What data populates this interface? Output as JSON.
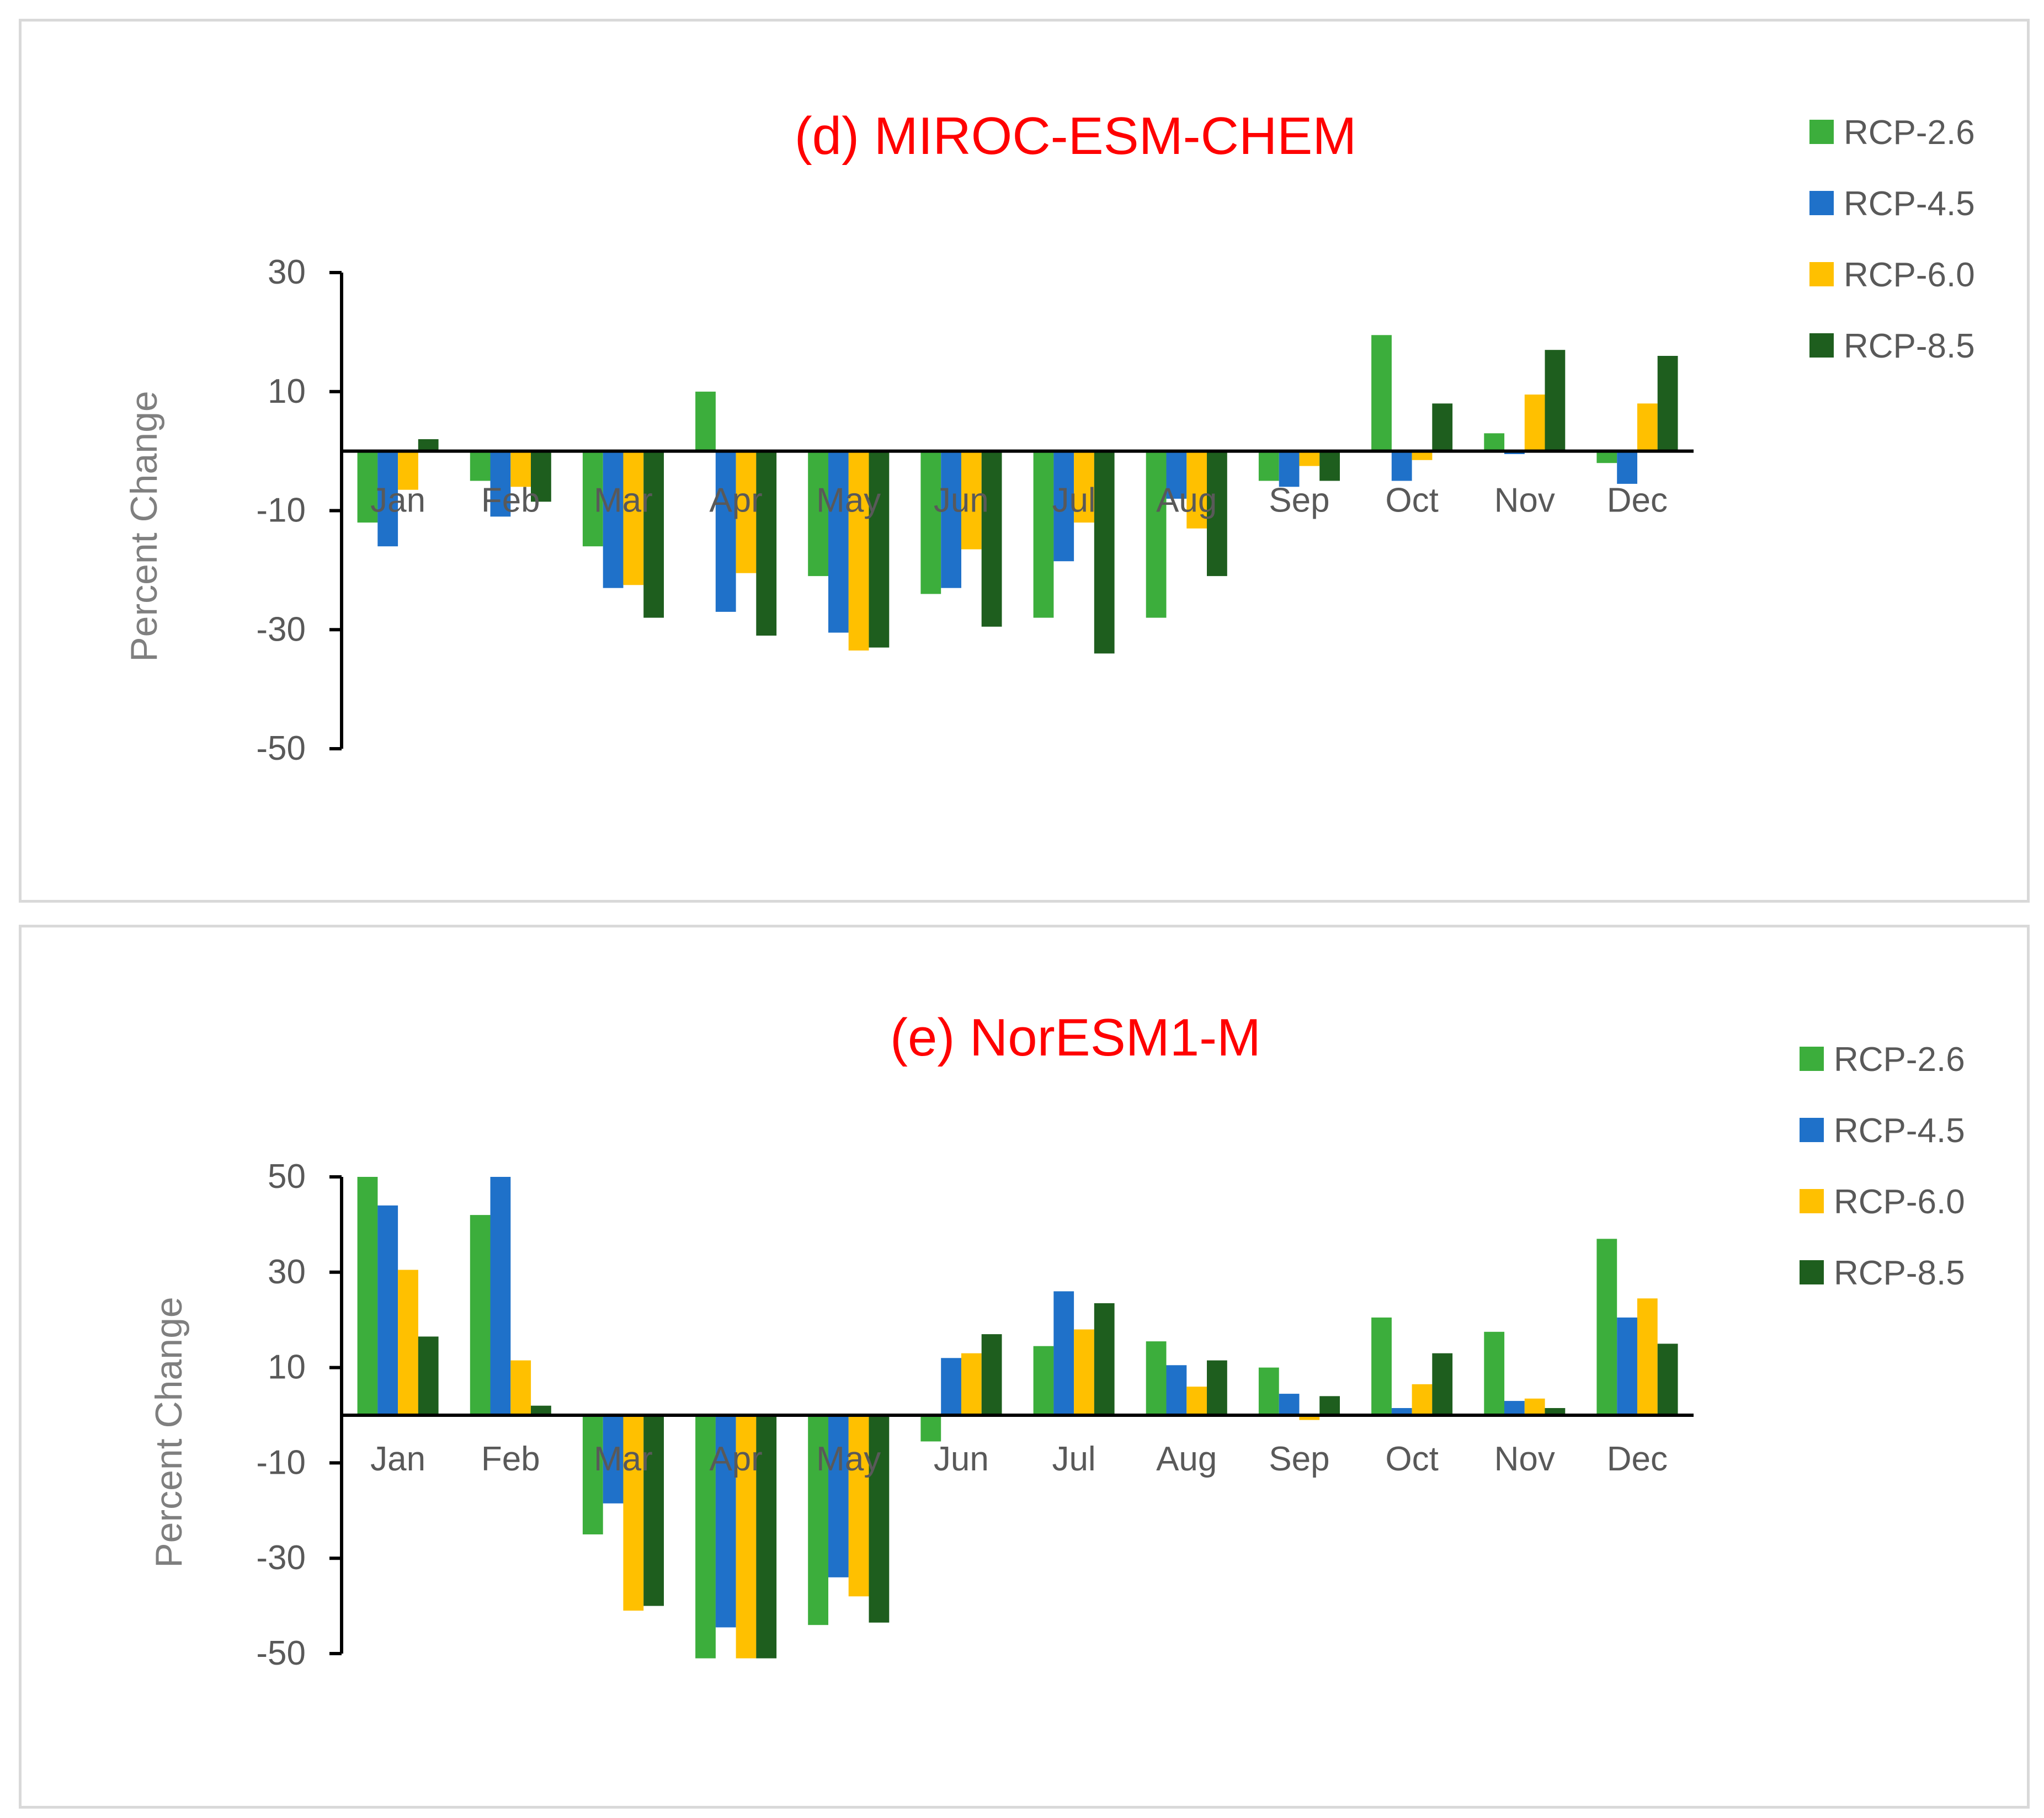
{
  "chart_data": [
    {
      "type": "bar",
      "title": "(d) MIROC-ESM-CHEM",
      "ylabel": "Percent Change",
      "xlabel": "",
      "ylim": [
        -50,
        30
      ],
      "yticks": [
        30,
        10,
        -10,
        -30,
        -50
      ],
      "categories": [
        "Jan",
        "Feb",
        "Mar",
        "Apr",
        "May",
        "Jun",
        "Jul",
        "Aug",
        "Sep",
        "Oct",
        "Nov",
        "Dec"
      ],
      "legend_position": "top-right",
      "series": [
        {
          "name": "RCP-2.6",
          "color": "#3cae3c",
          "values": [
            -12,
            -5,
            -16,
            10,
            -21,
            -24,
            -28,
            -28,
            -5,
            19.5,
            3,
            -2
          ]
        },
        {
          "name": "RCP-4.5",
          "color": "#1f71c9",
          "values": [
            -16,
            -11,
            -23,
            -27,
            -30.5,
            -23,
            -18.5,
            -8,
            -6,
            -5,
            -0.5,
            -5.5
          ]
        },
        {
          "name": "RCP-6.0",
          "color": "#ffc000",
          "values": [
            -6.5,
            -6,
            -22.5,
            -20.5,
            -33.5,
            -16.5,
            -12,
            -13,
            -2.5,
            -1.5,
            9.5,
            8
          ]
        },
        {
          "name": "RCP-8.5",
          "color": "#1e5e1e",
          "values": [
            2,
            -8.5,
            -28,
            -31,
            -33,
            -29.5,
            -34,
            -21,
            -5,
            8,
            17,
            16
          ]
        }
      ]
    },
    {
      "type": "bar",
      "title": "(e) NorESM1-M",
      "ylabel": "Percent Change",
      "xlabel": "",
      "ylim": [
        -50,
        50
      ],
      "yticks": [
        50,
        30,
        10,
        -10,
        -30,
        -50
      ],
      "categories": [
        "Jan",
        "Feb",
        "Mar",
        "Apr",
        "May",
        "Jun",
        "Jul",
        "Aug",
        "Sep",
        "Oct",
        "Nov",
        "Dec"
      ],
      "legend_position": "top-right",
      "series": [
        {
          "name": "RCP-2.6",
          "color": "#3cae3c",
          "values": [
            50,
            42,
            -25,
            -51,
            -44,
            -5.5,
            14.5,
            15.5,
            10,
            20.5,
            17.5,
            37
          ]
        },
        {
          "name": "RCP-4.5",
          "color": "#1f71c9",
          "values": [
            44,
            50,
            -18.5,
            -44.5,
            -34,
            12,
            26,
            10.5,
            4.5,
            1.5,
            3,
            20.5
          ]
        },
        {
          "name": "RCP-6.0",
          "color": "#ffc000",
          "values": [
            30.5,
            11.5,
            -41,
            -51,
            -38,
            13,
            18,
            6,
            -1,
            6.5,
            3.5,
            24.5
          ]
        },
        {
          "name": "RCP-8.5",
          "color": "#1e5e1e",
          "values": [
            16.5,
            2,
            -40,
            -51,
            -43.5,
            17,
            23.5,
            11.5,
            4,
            13,
            1.5,
            15
          ]
        }
      ]
    }
  ]
}
